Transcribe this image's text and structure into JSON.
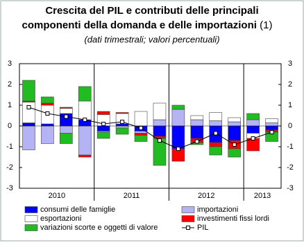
{
  "chart_data": {
    "type": "bar",
    "title": "Crescita del PIL e contributi delle principali",
    "title_line2": "componenti della domanda e delle importazioni",
    "title_note": "(1)",
    "subtitle": "(dati trimestrali; valori percentuali)",
    "categories": [
      "2010",
      null,
      null,
      null,
      "2011",
      null,
      null,
      null,
      "2012",
      null,
      null,
      null,
      "2013",
      null
    ],
    "ylim": [
      -3,
      3
    ],
    "yticks": [
      -3,
      -2,
      -1,
      0,
      1,
      2,
      3
    ],
    "series": [
      {
        "name": "consumi delle famiglie",
        "color": "#0000ff",
        "values": [
          0.15,
          0.1,
          0.6,
          0.3,
          -0.25,
          0.1,
          -0.25,
          -0.5,
          -1.1,
          -0.6,
          -0.8,
          -0.7,
          -0.35,
          -0.2
        ]
      },
      {
        "name": "importazioni",
        "color": "#b4b4f5",
        "values": [
          -1.15,
          -0.85,
          -0.35,
          -1.4,
          -0.05,
          -0.1,
          -0.1,
          0.3,
          0.8,
          0.3,
          0.25,
          0.2,
          0.3,
          0.15
        ]
      },
      {
        "name": "esportazioni",
        "color": "#ffffff",
        "values": [
          1.0,
          0.9,
          0.25,
          0.9,
          0.55,
          0.5,
          0.7,
          0.8,
          0.0,
          0.2,
          0.4,
          0.2,
          -0.25,
          0.2
        ]
      },
      {
        "name": "investimenti fissi lordi",
        "color": "#ff0000",
        "values": [
          0.05,
          0.1,
          0.05,
          -0.1,
          0.15,
          0.05,
          -0.1,
          -0.1,
          -0.6,
          -0.2,
          -0.2,
          -0.4,
          -0.6,
          -0.1
        ]
      },
      {
        "name": "variazioni scorte e oggetti di valore",
        "color": "#22bb22",
        "values": [
          1.0,
          0.3,
          -0.5,
          0.7,
          -0.3,
          -0.3,
          -0.3,
          -1.3,
          0.2,
          -0.1,
          -0.4,
          -0.4,
          0.3,
          -0.45
        ]
      },
      {
        "name": "PIL",
        "color": "#000000",
        "type": "line",
        "values": [
          0.9,
          0.6,
          0.45,
          0.3,
          0.1,
          0.2,
          -0.1,
          -0.7,
          -1.1,
          -0.75,
          -0.35,
          -0.9,
          -0.6,
          -0.3
        ]
      }
    ]
  }
}
